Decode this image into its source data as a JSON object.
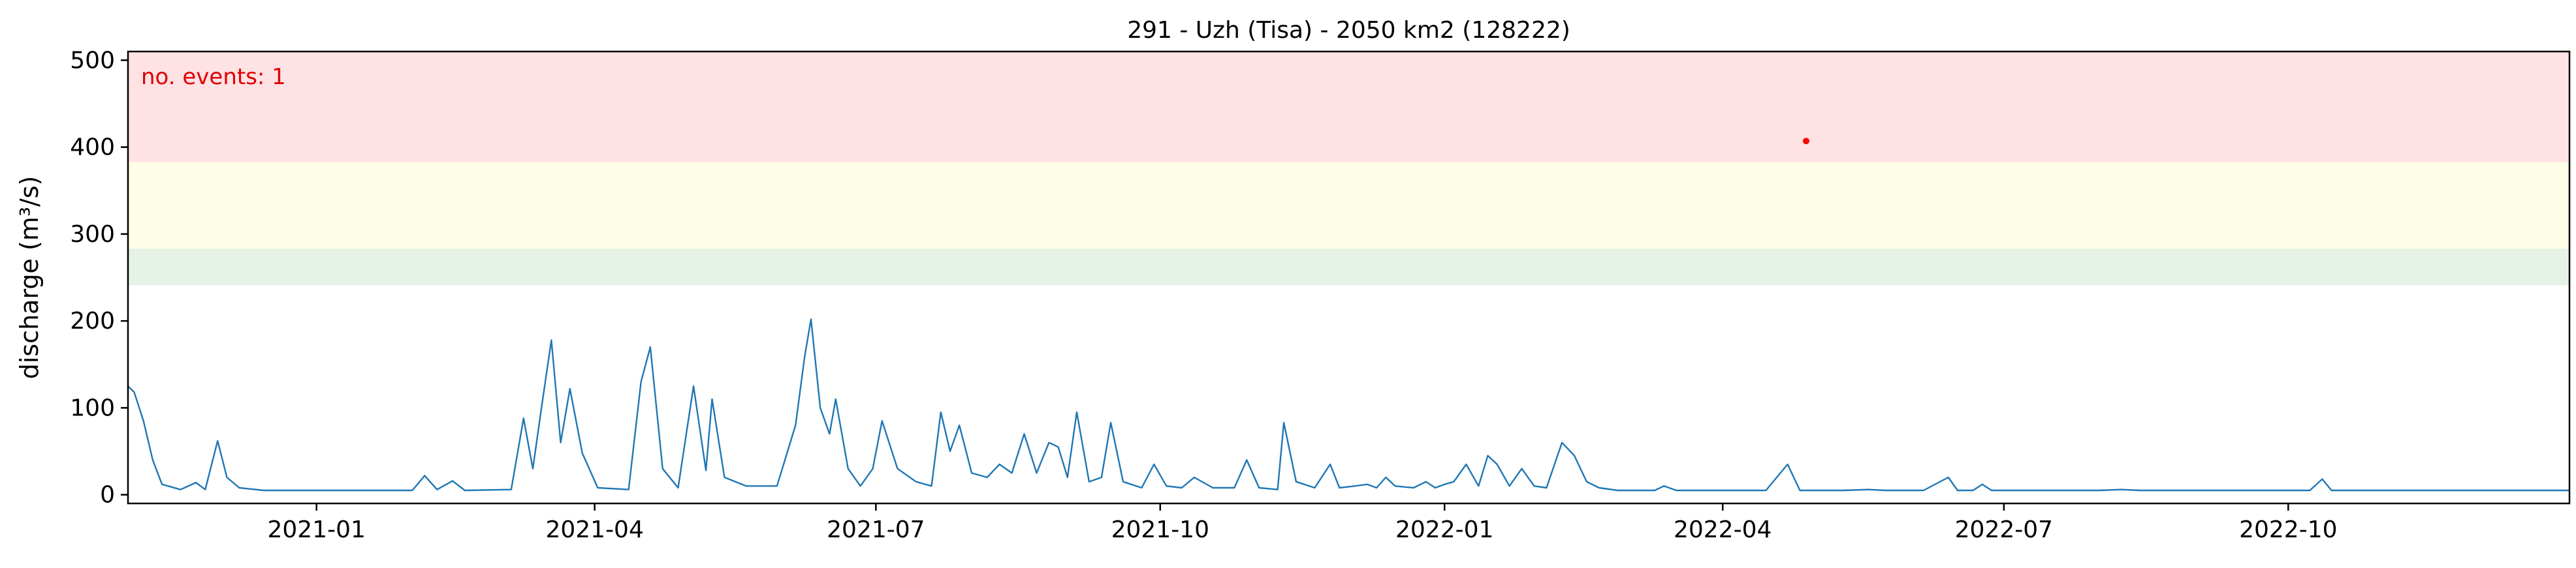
{
  "chart_data": {
    "type": "line",
    "title": "291 - Uzh (Tisa) - 2050 km2 (128222)",
    "xlabel": "",
    "ylabel": "discharge (m³/s)",
    "xlim": [
      "2020-11-01",
      "2022-12-31"
    ],
    "ylim": [
      -10,
      510
    ],
    "grid": false,
    "yticks": [
      0,
      100,
      200,
      300,
      400,
      500
    ],
    "xticks": [
      "2021-01",
      "2021-04",
      "2021-07",
      "2021-10",
      "2022-01",
      "2022-04",
      "2022-07",
      "2022-10"
    ],
    "threshold_bands": [
      {
        "from": 241,
        "to": 283,
        "color": "#e6f2e6"
      },
      {
        "from": 283,
        "to": 383,
        "color": "#fefee6"
      },
      {
        "from": 383,
        "to": 510,
        "color": "#ffe2e4"
      }
    ],
    "annotation": "no. events: 1",
    "series": [
      {
        "color": "#1f77b4",
        "points": [
          [
            "2020-11-01",
            125
          ],
          [
            "2020-11-03",
            118
          ],
          [
            "2020-11-06",
            85
          ],
          [
            "2020-11-09",
            40
          ],
          [
            "2020-11-12",
            12
          ],
          [
            "2020-11-18",
            6
          ],
          [
            "2020-11-23",
            14
          ],
          [
            "2020-11-26",
            6
          ],
          [
            "2020-11-30",
            62
          ],
          [
            "2020-12-03",
            20
          ],
          [
            "2020-12-07",
            8
          ],
          [
            "2020-12-15",
            5
          ],
          [
            "2021-01-15",
            5
          ],
          [
            "2021-02-01",
            5
          ],
          [
            "2021-02-05",
            22
          ],
          [
            "2021-02-09",
            6
          ],
          [
            "2021-02-14",
            16
          ],
          [
            "2021-02-18",
            5
          ],
          [
            "2021-03-05",
            6
          ],
          [
            "2021-03-09",
            88
          ],
          [
            "2021-03-12",
            30
          ],
          [
            "2021-03-15",
            105
          ],
          [
            "2021-03-18",
            178
          ],
          [
            "2021-03-21",
            60
          ],
          [
            "2021-03-24",
            122
          ],
          [
            "2021-03-28",
            48
          ],
          [
            "2021-04-02",
            8
          ],
          [
            "2021-04-12",
            6
          ],
          [
            "2021-04-16",
            130
          ],
          [
            "2021-04-19",
            170
          ],
          [
            "2021-04-23",
            30
          ],
          [
            "2021-04-28",
            8
          ],
          [
            "2021-05-03",
            125
          ],
          [
            "2021-05-07",
            28
          ],
          [
            "2021-05-09",
            110
          ],
          [
            "2021-05-13",
            20
          ],
          [
            "2021-05-20",
            10
          ],
          [
            "2021-05-30",
            10
          ],
          [
            "2021-06-05",
            80
          ],
          [
            "2021-06-08",
            160
          ],
          [
            "2021-06-10",
            202
          ],
          [
            "2021-06-13",
            100
          ],
          [
            "2021-06-16",
            70
          ],
          [
            "2021-06-18",
            110
          ],
          [
            "2021-06-22",
            30
          ],
          [
            "2021-06-26",
            10
          ],
          [
            "2021-06-30",
            30
          ],
          [
            "2021-07-03",
            85
          ],
          [
            "2021-07-08",
            30
          ],
          [
            "2021-07-14",
            15
          ],
          [
            "2021-07-19",
            10
          ],
          [
            "2021-07-22",
            95
          ],
          [
            "2021-07-25",
            50
          ],
          [
            "2021-07-28",
            80
          ],
          [
            "2021-08-01",
            25
          ],
          [
            "2021-08-06",
            20
          ],
          [
            "2021-08-10",
            35
          ],
          [
            "2021-08-14",
            25
          ],
          [
            "2021-08-18",
            70
          ],
          [
            "2021-08-22",
            25
          ],
          [
            "2021-08-26",
            60
          ],
          [
            "2021-08-29",
            55
          ],
          [
            "2021-09-01",
            20
          ],
          [
            "2021-09-04",
            95
          ],
          [
            "2021-09-08",
            15
          ],
          [
            "2021-09-12",
            20
          ],
          [
            "2021-09-15",
            83
          ],
          [
            "2021-09-19",
            15
          ],
          [
            "2021-09-25",
            8
          ],
          [
            "2021-09-29",
            35
          ],
          [
            "2021-10-03",
            10
          ],
          [
            "2021-10-08",
            8
          ],
          [
            "2021-10-12",
            20
          ],
          [
            "2021-10-18",
            8
          ],
          [
            "2021-10-25",
            8
          ],
          [
            "2021-10-29",
            40
          ],
          [
            "2021-11-02",
            8
          ],
          [
            "2021-11-08",
            6
          ],
          [
            "2021-11-10",
            83
          ],
          [
            "2021-11-14",
            15
          ],
          [
            "2021-11-20",
            8
          ],
          [
            "2021-11-25",
            35
          ],
          [
            "2021-11-28",
            8
          ],
          [
            "2021-12-03",
            10
          ],
          [
            "2021-12-07",
            12
          ],
          [
            "2021-12-10",
            8
          ],
          [
            "2021-12-13",
            20
          ],
          [
            "2021-12-16",
            10
          ],
          [
            "2021-12-22",
            8
          ],
          [
            "2021-12-26",
            15
          ],
          [
            "2021-12-29",
            8
          ],
          [
            "2022-01-01",
            12
          ],
          [
            "2022-01-04",
            15
          ],
          [
            "2022-01-08",
            35
          ],
          [
            "2022-01-12",
            10
          ],
          [
            "2022-01-15",
            45
          ],
          [
            "2022-01-18",
            35
          ],
          [
            "2022-01-22",
            10
          ],
          [
            "2022-01-26",
            30
          ],
          [
            "2022-01-30",
            10
          ],
          [
            "2022-02-03",
            8
          ],
          [
            "2022-02-08",
            60
          ],
          [
            "2022-02-12",
            45
          ],
          [
            "2022-02-16",
            15
          ],
          [
            "2022-02-20",
            8
          ],
          [
            "2022-02-26",
            5
          ],
          [
            "2022-03-05",
            5
          ],
          [
            "2022-03-10",
            5
          ],
          [
            "2022-03-13",
            10
          ],
          [
            "2022-03-17",
            5
          ],
          [
            "2022-03-25",
            5
          ],
          [
            "2022-04-15",
            5
          ],
          [
            "2022-04-22",
            35
          ],
          [
            "2022-04-26",
            5
          ],
          [
            "2022-05-10",
            5
          ],
          [
            "2022-05-18",
            6
          ],
          [
            "2022-05-24",
            5
          ],
          [
            "2022-06-05",
            5
          ],
          [
            "2022-06-13",
            20
          ],
          [
            "2022-06-16",
            5
          ],
          [
            "2022-06-21",
            5
          ],
          [
            "2022-06-24",
            12
          ],
          [
            "2022-06-27",
            5
          ],
          [
            "2022-07-05",
            5
          ],
          [
            "2022-07-17",
            5
          ],
          [
            "2022-07-22",
            5
          ],
          [
            "2022-07-26",
            5
          ],
          [
            "2022-08-01",
            5
          ],
          [
            "2022-08-08",
            6
          ],
          [
            "2022-08-14",
            5
          ],
          [
            "2022-08-25",
            5
          ],
          [
            "2022-09-05",
            5
          ],
          [
            "2022-09-20",
            5
          ],
          [
            "2022-10-08",
            5
          ],
          [
            "2022-10-12",
            18
          ],
          [
            "2022-10-15",
            5
          ],
          [
            "2022-10-20",
            5
          ],
          [
            "2022-11-01",
            5
          ],
          [
            "2022-11-13",
            5
          ],
          [
            "2022-11-22",
            5
          ],
          [
            "2022-11-30",
            5
          ],
          [
            "2022-12-15",
            5
          ],
          [
            "2022-12-31",
            5
          ]
        ]
      }
    ],
    "event_points": [
      [
        "2022-04-28",
        407
      ]
    ]
  }
}
